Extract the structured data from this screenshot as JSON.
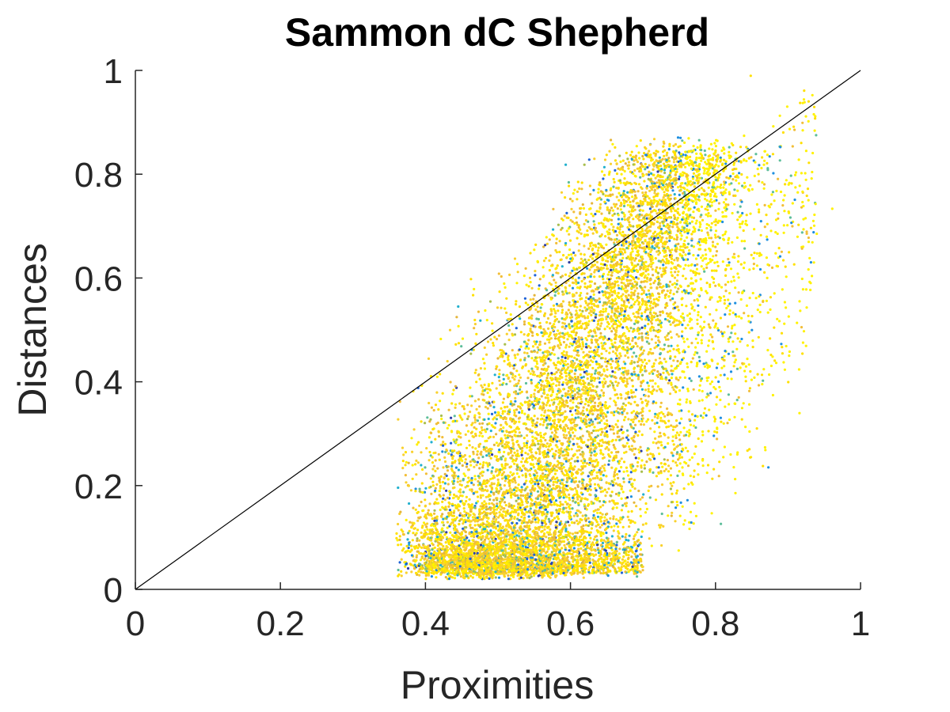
{
  "chart_data": {
    "type": "scatter",
    "title": "Sammon dC Shepherd",
    "xlabel": "Proximities",
    "ylabel": "Distances",
    "xlim": [
      0,
      1
    ],
    "ylim": [
      0,
      1
    ],
    "x_ticks": [
      "0",
      "0.2",
      "0.4",
      "0.6",
      "0.8",
      "1"
    ],
    "y_ticks": [
      "0",
      "0.2",
      "0.4",
      "0.6",
      "0.8",
      "1"
    ],
    "grid": false,
    "legend": "none",
    "reference_line": {
      "from": [
        0,
        0
      ],
      "to": [
        1,
        1
      ],
      "color": "#000000"
    },
    "point_colors": [
      "#FFF200",
      "#FFE000",
      "#F9D12E",
      "#F2BE38",
      "#E4B53B",
      "#A8BE4E",
      "#5DBE9A",
      "#21B0CE",
      "#1E8FE0",
      "#1F62D7",
      "#2D3CA6"
    ],
    "point_cloud_density": {
      "description_values": [
        {
          "x": 0.36,
          "y": 0.07
        },
        {
          "x": 0.38,
          "y": 0.1
        },
        {
          "x": 0.4,
          "y": 0.05
        },
        {
          "x": 0.42,
          "y": 0.04
        },
        {
          "x": 0.45,
          "y": 0.05
        },
        {
          "x": 0.48,
          "y": 0.06
        },
        {
          "x": 0.5,
          "y": 0.05
        },
        {
          "x": 0.55,
          "y": 0.06
        },
        {
          "x": 0.6,
          "y": 0.07
        },
        {
          "x": 0.45,
          "y": 0.2
        },
        {
          "x": 0.48,
          "y": 0.28
        },
        {
          "x": 0.5,
          "y": 0.33
        },
        {
          "x": 0.52,
          "y": 0.4
        },
        {
          "x": 0.55,
          "y": 0.45
        },
        {
          "x": 0.58,
          "y": 0.5
        },
        {
          "x": 0.6,
          "y": 0.55
        },
        {
          "x": 0.63,
          "y": 0.6
        },
        {
          "x": 0.66,
          "y": 0.65
        },
        {
          "x": 0.7,
          "y": 0.72
        },
        {
          "x": 0.75,
          "y": 0.78
        },
        {
          "x": 0.8,
          "y": 0.85
        },
        {
          "x": 0.85,
          "y": 0.88
        },
        {
          "x": 0.9,
          "y": 0.95
        },
        {
          "x": 0.95,
          "y": 0.98
        },
        {
          "x": 0.65,
          "y": 0.2
        },
        {
          "x": 0.7,
          "y": 0.15
        },
        {
          "x": 0.75,
          "y": 0.1
        },
        {
          "x": 0.8,
          "y": 0.3
        },
        {
          "x": 0.85,
          "y": 0.4
        },
        {
          "x": 0.88,
          "y": 0.55
        },
        {
          "x": 0.9,
          "y": 0.7
        },
        {
          "x": 0.93,
          "y": 0.34
        },
        {
          "x": 0.87,
          "y": 0.19
        },
        {
          "x": 0.49,
          "y": 0.74
        },
        {
          "x": 0.46,
          "y": 0.67
        }
      ]
    }
  }
}
